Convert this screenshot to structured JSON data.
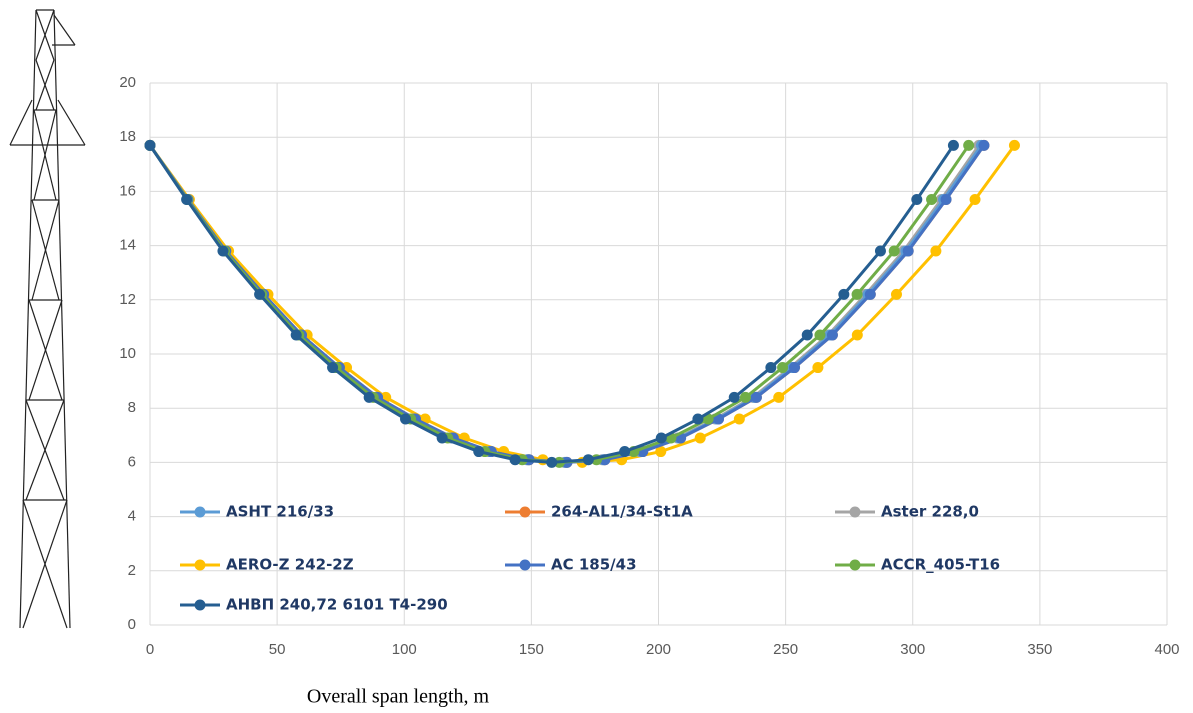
{
  "chart_data": {
    "type": "line",
    "x_label": "Overall span length, m",
    "xlim": [
      0,
      400
    ],
    "xticks": [
      0,
      50,
      100,
      150,
      200,
      250,
      300,
      350,
      400
    ],
    "ylim": [
      0,
      20
    ],
    "yticks": [
      0,
      2,
      4,
      6,
      8,
      10,
      12,
      14,
      16,
      18,
      20
    ],
    "grid": true,
    "series": [
      {
        "name": "AERO-Z 242-2Z",
        "color": "#ffc000",
        "x": [
          0,
          15.5,
          30.9,
          46.4,
          61.8,
          77.3,
          92.7,
          108.2,
          123.6,
          139.1,
          154.5,
          170,
          185.5,
          200.9,
          216.4,
          231.8,
          247.3,
          262.7,
          278.2,
          293.6,
          309.1,
          324.5,
          340
        ],
        "values": [
          17.7,
          15.7,
          13.8,
          12.2,
          10.7,
          9.5,
          8.4,
          7.6,
          6.9,
          6.4,
          6.1,
          6.0,
          6.1,
          6.4,
          6.9,
          7.6,
          8.4,
          9.5,
          10.7,
          12.2,
          13.8,
          15.7,
          17.7
        ]
      },
      {
        "name": "Aster 228,0",
        "color": "#a5a5a5",
        "x": [
          0,
          14.8,
          29.6,
          44.5,
          59.3,
          74.1,
          88.9,
          103.7,
          118.5,
          133.4,
          148.2,
          163,
          177.8,
          192.6,
          207.5,
          222.3,
          237.1,
          251.9,
          266.7,
          281.5,
          296.4,
          311.2,
          326
        ],
        "values": [
          17.7,
          15.7,
          13.8,
          12.2,
          10.7,
          9.5,
          8.4,
          7.6,
          6.9,
          6.4,
          6.1,
          6.0,
          6.1,
          6.4,
          6.9,
          7.6,
          8.4,
          9.5,
          10.7,
          12.2,
          13.8,
          15.7,
          17.7
        ]
      },
      {
        "name": "264-AL1/34-St1A",
        "color": "#ed7d31",
        "x": [
          0,
          14.9,
          29.8,
          44.7,
          59.6,
          74.5,
          89.5,
          104.4,
          119.3,
          134.2,
          149.1,
          164,
          178.9,
          193.8,
          208.7,
          223.6,
          238.5,
          253.5,
          268.4,
          283.3,
          298.2,
          313.1,
          328
        ],
        "values": [
          17.7,
          15.7,
          13.8,
          12.2,
          10.7,
          9.5,
          8.4,
          7.6,
          6.9,
          6.4,
          6.1,
          6.0,
          6.1,
          6.4,
          6.9,
          7.6,
          8.4,
          9.5,
          10.7,
          12.2,
          13.8,
          15.7,
          17.7
        ]
      },
      {
        "name": "ASHT 216/33",
        "color": "#5b9bd5",
        "x": [
          0,
          14.9,
          29.7,
          44.6,
          59.5,
          74.3,
          89.2,
          104,
          118.9,
          133.8,
          148.6,
          163.5,
          178.4,
          193.2,
          208.1,
          223,
          237.8,
          252.7,
          267.5,
          282.4,
          297.3,
          312.1,
          327
        ],
        "values": [
          17.7,
          15.7,
          13.8,
          12.2,
          10.7,
          9.5,
          8.4,
          7.6,
          6.9,
          6.4,
          6.1,
          6.0,
          6.1,
          6.4,
          6.9,
          7.6,
          8.4,
          9.5,
          10.7,
          12.2,
          13.8,
          15.7,
          17.7
        ]
      },
      {
        "name": "AC 185/43",
        "color": "#4472c4",
        "x": [
          0,
          14.9,
          29.8,
          44.7,
          59.6,
          74.5,
          89.5,
          104.4,
          119.3,
          134.2,
          149.1,
          164,
          178.9,
          193.8,
          208.7,
          223.6,
          238.5,
          253.5,
          268.4,
          283.3,
          298.2,
          313.1,
          328
        ],
        "values": [
          17.7,
          15.7,
          13.8,
          12.2,
          10.7,
          9.5,
          8.4,
          7.6,
          6.9,
          6.4,
          6.1,
          6.0,
          6.1,
          6.4,
          6.9,
          7.6,
          8.4,
          9.5,
          10.7,
          12.2,
          13.8,
          15.7,
          17.7
        ]
      },
      {
        "name": "ACCR_405-T16",
        "color": "#70ad47",
        "x": [
          0,
          14.6,
          29.3,
          43.9,
          58.5,
          73.2,
          87.8,
          102.5,
          117.1,
          131.7,
          146.4,
          161,
          175.6,
          190.3,
          204.9,
          219.5,
          234.2,
          248.8,
          263.5,
          278.1,
          292.7,
          307.4,
          322
        ],
        "values": [
          17.7,
          15.7,
          13.8,
          12.2,
          10.7,
          9.5,
          8.4,
          7.6,
          6.9,
          6.4,
          6.1,
          6.0,
          6.1,
          6.4,
          6.9,
          7.6,
          8.4,
          9.5,
          10.7,
          12.2,
          13.8,
          15.7,
          17.7
        ]
      },
      {
        "name": "АНВП 240,72 6101 Т4-290",
        "color": "#255e91",
        "x": [
          0,
          14.4,
          28.7,
          43.1,
          57.5,
          71.8,
          86.2,
          100.5,
          114.9,
          129.3,
          143.6,
          158,
          172.4,
          186.7,
          201.1,
          215.5,
          229.8,
          244.2,
          258.5,
          272.9,
          287.3,
          301.6,
          316
        ],
        "values": [
          17.7,
          15.7,
          13.8,
          12.2,
          10.7,
          9.5,
          8.4,
          7.6,
          6.9,
          6.4,
          6.1,
          6.0,
          6.1,
          6.4,
          6.9,
          7.6,
          8.4,
          9.5,
          10.7,
          12.2,
          13.8,
          15.7,
          17.7
        ]
      }
    ]
  }
}
